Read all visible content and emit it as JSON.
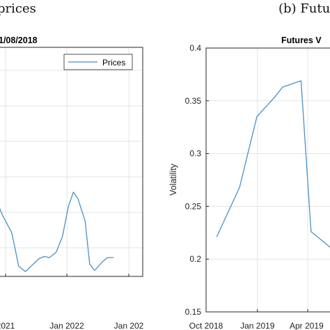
{
  "captions": {
    "left": "prices",
    "right": "(b) Futu"
  },
  "colors": {
    "series": "#4a90c4",
    "grid": "#e3e3e3",
    "axis": "#262626"
  },
  "chart_data": [
    {
      "type": "line",
      "title": "1/08/2018",
      "xlabel": "",
      "ylabel": "",
      "x_tick_labels": [
        "2021",
        "Jan 2022",
        "Jan 202"
      ],
      "grid": true,
      "legend": {
        "position": "top-right",
        "entries": [
          "Prices"
        ]
      },
      "series": [
        {
          "name": "Prices",
          "points": [
            [
              -2,
              0.72
            ],
            [
              0,
              0.52
            ],
            [
              2,
              0.36
            ],
            [
              3.5,
              0.05
            ],
            [
              5,
              0.0
            ],
            [
              8,
              0.12
            ],
            [
              9.2,
              0.14
            ],
            [
              10.3,
              0.13
            ],
            [
              11.8,
              0.18
            ],
            [
              13.2,
              0.33
            ],
            [
              14.5,
              0.61
            ],
            [
              15.6,
              0.74
            ],
            [
              16.6,
              0.68
            ],
            [
              18.2,
              0.47
            ],
            [
              19.2,
              0.07
            ],
            [
              20.3,
              0.01
            ],
            [
              22,
              0.09
            ],
            [
              23.1,
              0.13
            ],
            [
              24.5,
              0.13
            ]
          ]
        }
      ]
    },
    {
      "type": "line",
      "title": "Futures V",
      "xlabel": "",
      "ylabel": "Volatility",
      "ylim": [
        0.15,
        0.4
      ],
      "y_ticks": [
        0.15,
        0.2,
        0.25,
        0.3,
        0.35,
        0.4
      ],
      "y_tick_labels": [
        "0.15",
        "0.2",
        "0.25",
        "0.3",
        "0.35",
        "0.4"
      ],
      "x_tick_labels": [
        "Oct 2018",
        "Jan 2019",
        "Apr 2019"
      ],
      "grid": true,
      "series": [
        {
          "points": [
            [
              "2018-10-20",
              0.221
            ],
            [
              "2018-11-30",
              0.268
            ],
            [
              "2018-12-31",
              0.335
            ],
            [
              "2019-01-31",
              0.353
            ],
            [
              "2019-02-15",
              0.363
            ],
            [
              "2019-03-20",
              0.369
            ],
            [
              "2019-04-07",
              0.226
            ],
            [
              "2019-05-05",
              0.214
            ],
            [
              "2019-05-20",
              0.207
            ]
          ]
        }
      ]
    }
  ]
}
